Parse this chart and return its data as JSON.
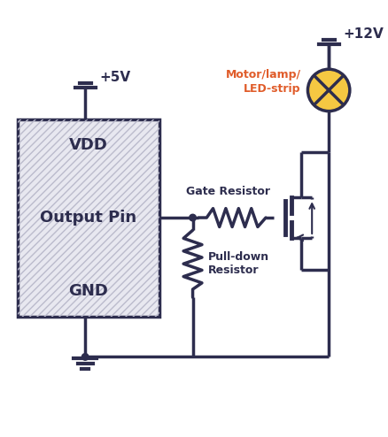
{
  "bg_color": "#ffffff",
  "line_color": "#2d2d4e",
  "line_width": 2.5,
  "vdd_label": "VDD",
  "gnd_label": "GND",
  "output_pin_label": "Output Pin",
  "v5_label": "+5V",
  "v12_label": "+12V",
  "gate_resistor_label": "Gate Resistor",
  "pulldown_resistor_label": "Pull-down\nResistor",
  "motor_label": "Motor/lamp/\nLED-strip",
  "motor_label_color": "#e05c2a",
  "lamp_color": "#f5c842",
  "box_hatch_color": "#bbbbcc",
  "box_face_color": "#e8e8f0"
}
